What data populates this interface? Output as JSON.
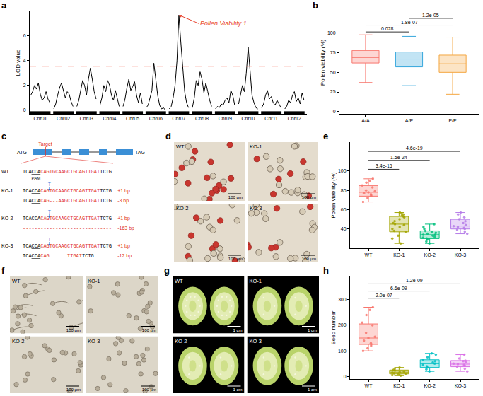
{
  "chart_data": [
    {
      "panel": "a",
      "type": "line",
      "color": "#000000",
      "categories": [
        null,
        null,
        null,
        null,
        null,
        "Chr01",
        null,
        null,
        null,
        null,
        null,
        null,
        null,
        null,
        null,
        null,
        null,
        "Chr02",
        null,
        null,
        null,
        null,
        null,
        null,
        null,
        null,
        null,
        null,
        null,
        "Chr03",
        null,
        null,
        null,
        null,
        null,
        null,
        null,
        null,
        null,
        null,
        null,
        "Chr04",
        null,
        null,
        null,
        null,
        null,
        null,
        null,
        null,
        null,
        null,
        null,
        "Chr05",
        null,
        null,
        null,
        null,
        null,
        null,
        null,
        null,
        null,
        null,
        null,
        "Chr06",
        null,
        null,
        null,
        null,
        null,
        null,
        null,
        null,
        null,
        null,
        null,
        "Chr07",
        null,
        null,
        null,
        null,
        null,
        null,
        null,
        null,
        null,
        null,
        null,
        "Chr08",
        null,
        null,
        null,
        null,
        null,
        null,
        null,
        null,
        null,
        null,
        null,
        "Chr09",
        null,
        null,
        null,
        null,
        null,
        null,
        null,
        null,
        null,
        null,
        null,
        "Chr10",
        null,
        null,
        null,
        null,
        null,
        null,
        null,
        null,
        null,
        null,
        null,
        "Chr11",
        null,
        null,
        null,
        null,
        null,
        null,
        null,
        null,
        null,
        null,
        null,
        "Chr12",
        null,
        null,
        null,
        null,
        null,
        null
      ],
      "values": [
        1.2,
        1.5,
        2.0,
        1.7,
        2.2,
        1.3,
        0.8,
        1.0,
        1.5,
        0.9,
        0.6,
        null,
        0.1,
        0.5,
        1.2,
        1.8,
        2.2,
        1.6,
        1.0,
        1.5,
        1.3,
        0.7,
        0.3,
        null,
        0.3,
        0.8,
        1.6,
        2.4,
        2.0,
        1.2,
        2.5,
        3.4,
        2.5,
        1.5,
        0.9,
        null,
        0.4,
        1.0,
        2.0,
        1.5,
        2.4,
        2.0,
        1.2,
        0.8,
        1.6,
        1.0,
        0.3,
        null,
        0.3,
        0.9,
        1.8,
        2.5,
        1.6,
        1.9,
        2.3,
        1.2,
        0.6,
        1.4,
        0.5,
        null,
        0.2,
        0.4,
        1.0,
        1.6,
        3.8,
        2.5,
        1.2,
        0.4,
        0.1,
        0.2,
        0.0,
        null,
        0.1,
        0.3,
        1.0,
        2.0,
        4.0,
        7.7,
        5.5,
        3.5,
        1.5,
        0.6,
        0.2,
        null,
        0.2,
        1.0,
        2.4,
        2.0,
        3.1,
        2.5,
        1.4,
        2.2,
        1.5,
        0.8,
        0.3,
        null,
        0.1,
        0.3,
        0.2,
        0.5,
        0.4,
        0.8,
        1.0,
        0.6,
        1.6,
        1.2,
        0.4,
        null,
        0.5,
        1.2,
        2.0,
        1.5,
        3.0,
        5.1,
        3.0,
        1.2,
        0.6,
        0.2,
        0.1,
        null,
        0.2,
        0.5,
        1.2,
        1.6,
        0.9,
        1.1,
        0.6,
        0.4,
        0.8,
        0.5,
        0.2,
        null,
        0.1,
        0.3,
        0.8,
        0.6,
        1.2,
        1.5,
        0.7,
        1.0,
        0.5,
        1.4,
        0.8,
        null
      ],
      "ylabel": "LOD value",
      "ylim": [
        -0.3,
        8
      ],
      "yticks": [
        0,
        2,
        4,
        6
      ],
      "grid": false,
      "threshold": {
        "value": 3.55,
        "color": "#F4826F",
        "line_style": "dashed"
      },
      "annotation": {
        "text": "Pollen Viability 1",
        "color": "#E8412C"
      }
    },
    {
      "panel": "b",
      "type": "box",
      "categories": [
        "A/A",
        "A/E",
        "E/E"
      ],
      "colors": [
        "#F8766D",
        "#35A7DC",
        "#F4A640"
      ],
      "boxes": [
        {
          "q1": 62,
          "median": 69,
          "q3": 78,
          "low": 37,
          "high": 98
        },
        {
          "q1": 57,
          "median": 67,
          "q3": 76,
          "low": 33,
          "high": 96
        },
        {
          "q1": 50,
          "median": 61,
          "q3": 72,
          "low": 22,
          "high": 95
        }
      ],
      "ylabel": "Pollen viability (%)",
      "ylim": [
        -3,
        128
      ],
      "yticks": [
        0,
        25,
        50,
        75,
        100
      ],
      "grid": false,
      "comparisons": [
        {
          "groups": [
            "A/A",
            "A/E"
          ],
          "p": "0.028"
        },
        {
          "groups": [
            "A/A",
            "E/E"
          ],
          "p": "1.8e-07"
        },
        {
          "groups": [
            "A/E",
            "E/E"
          ],
          "p": "1.2e-05"
        }
      ]
    },
    {
      "panel": "e",
      "type": "box",
      "categories": [
        "WT",
        "KO-1",
        "KO-2",
        "KO-3"
      ],
      "colors": [
        "#F8766D",
        "#A3A500",
        "#00BF7D",
        "#B57BE8"
      ],
      "boxes": [
        {
          "q1": 74,
          "median": 78,
          "q3": 85,
          "low": 68,
          "high": 92,
          "points": [
            68,
            72,
            74,
            75,
            76,
            77,
            78,
            79,
            80,
            83,
            85,
            88,
            90,
            92
          ]
        },
        {
          "q1": 37,
          "median": 45,
          "q3": 53,
          "low": 25,
          "high": 57,
          "points": [
            25,
            30,
            33,
            37,
            38,
            40,
            42,
            44,
            45,
            46,
            48,
            50,
            52,
            53,
            54,
            55,
            56,
            57
          ]
        },
        {
          "q1": 30,
          "median": 34,
          "q3": 38,
          "low": 25,
          "high": 45,
          "points": [
            25,
            27,
            29,
            30,
            31,
            32,
            33,
            34,
            34,
            35,
            36,
            37,
            38,
            40,
            42,
            45
          ]
        },
        {
          "q1": 40,
          "median": 43,
          "q3": 50,
          "low": 35,
          "high": 57,
          "points": [
            35,
            37,
            39,
            40,
            41,
            42,
            43,
            44,
            46,
            48,
            50,
            52,
            55,
            57
          ]
        }
      ],
      "ylabel": "Pollen viability (%)",
      "ylim": [
        20,
        130
      ],
      "yticks": [
        40,
        60,
        80,
        100
      ],
      "grid": false,
      "comparisons": [
        {
          "groups": [
            "WT",
            "KO-1"
          ],
          "p": "3.4e-15"
        },
        {
          "groups": [
            "WT",
            "KO-2"
          ],
          "p": "1.5e-24"
        },
        {
          "groups": [
            "WT",
            "KO-3"
          ],
          "p": "4.6e-19"
        }
      ]
    },
    {
      "panel": "h",
      "type": "box",
      "categories": [
        "WT",
        "KO-1",
        "KO-2",
        "KO-3"
      ],
      "colors": [
        "#F8766D",
        "#A3A500",
        "#00BFC4",
        "#D970E6"
      ],
      "boxes": [
        {
          "q1": 125,
          "median": 150,
          "q3": 205,
          "low": 100,
          "high": 270,
          "points": [
            100,
            110,
            120,
            125,
            130,
            140,
            150,
            155,
            170,
            200,
            210,
            240,
            260,
            270
          ]
        },
        {
          "q1": 10,
          "median": 17,
          "q3": 25,
          "low": 3,
          "high": 35,
          "points": [
            3,
            5,
            8,
            10,
            12,
            15,
            17,
            20,
            23,
            25,
            30,
            35
          ]
        },
        {
          "q1": 35,
          "median": 50,
          "q3": 65,
          "low": 20,
          "high": 90,
          "points": [
            20,
            28,
            35,
            40,
            45,
            50,
            55,
            60,
            65,
            75,
            85,
            90
          ]
        },
        {
          "q1": 38,
          "median": 48,
          "q3": 62,
          "low": 20,
          "high": 85,
          "points": [
            20,
            30,
            38,
            42,
            45,
            48,
            50,
            55,
            60,
            62,
            70,
            85
          ]
        }
      ],
      "ylabel": "Seed number",
      "ylim": [
        -10,
        390
      ],
      "yticks": [
        0,
        100,
        200,
        300
      ],
      "grid": false,
      "comparisons": [
        {
          "groups": [
            "WT",
            "KO-1"
          ],
          "p": "2.0e-07"
        },
        {
          "groups": [
            "WT",
            "KO-2"
          ],
          "p": "6.6e-09"
        },
        {
          "groups": [
            "WT",
            "KO-3"
          ],
          "p": "1.2e-09"
        }
      ]
    }
  ],
  "diagram": {
    "panel": "c",
    "gene": {
      "start": "ATG",
      "end": "TAG",
      "target": "Target"
    },
    "pam": "PAM",
    "rows": [
      {
        "name": "WT",
        "segments": [
          {
            "text": "TCA"
          },
          {
            "text": "CCA",
            "style": "pam"
          },
          {
            "text": "CAGTGCAAGCTGCAGTTGAT",
            "style": "target"
          },
          {
            "text": "TCTG"
          }
        ]
      },
      {
        "name": "KO-1",
        "segments": [
          {
            "text": "TCA"
          },
          {
            "text": "CCA",
            "style": "pam"
          },
          {
            "text": "CAG",
            "style": "target"
          },
          {
            "text": "T",
            "style": "insert"
          },
          {
            "text": "TGCAAGCTGCAGTTGAT",
            "style": "target"
          },
          {
            "text": "TCTG"
          }
        ],
        "change": "+1 bp"
      },
      {
        "segments": [
          {
            "text": "TCA"
          },
          {
            "text": "CCA",
            "style": "pam"
          },
          {
            "text": "CAG",
            "style": "target"
          },
          {
            "text": "---",
            "style": "target"
          },
          {
            "text": "AAGCTGCAGTTGAT",
            "style": "target"
          },
          {
            "text": "TCTG"
          }
        ],
        "change": "-3 bp"
      },
      {
        "name": "KO-2",
        "segments": [
          {
            "text": "TCA"
          },
          {
            "text": "CCA",
            "style": "pam"
          },
          {
            "text": "CAG",
            "style": "target"
          },
          {
            "text": "T",
            "style": "insert"
          },
          {
            "text": "TGCAAGCTGCAGTTGAT",
            "style": "target"
          },
          {
            "text": "TCTG"
          }
        ],
        "change": "+1 bp"
      },
      {
        "segments": [
          {
            "text": "------------------------------",
            "style": "target"
          }
        ],
        "change": "-163 bp"
      },
      {
        "name": "KO-3",
        "segments": [
          {
            "text": "TCA"
          },
          {
            "text": "CCA",
            "style": "pam"
          },
          {
            "text": "CAG",
            "style": "target"
          },
          {
            "text": "T",
            "style": "insert"
          },
          {
            "text": "TGCAAGCTGCAGTTGAT",
            "style": "target"
          },
          {
            "text": "TCTG"
          }
        ],
        "change": "+1 bp"
      },
      {
        "segments": [
          {
            "text": "TCA"
          },
          {
            "text": "CCA",
            "style": "pam"
          },
          {
            "text": "CAG",
            "style": "target"
          },
          {
            "style": "gap"
          },
          {
            "text": "TTGAT",
            "style": "target"
          },
          {
            "text": "TCTG"
          }
        ],
        "change": "-12 bp"
      }
    ]
  },
  "images": [
    {
      "panel": "d",
      "type": "stain",
      "images": [
        {
          "name": "WT",
          "scale": "100 μm"
        },
        {
          "name": "KO-1",
          "scale": "100 μm"
        },
        {
          "name": "KO-2",
          "scale": "100 μm"
        },
        {
          "name": "KO-3",
          "scale": "100 μm"
        }
      ]
    },
    {
      "panel": "f",
      "type": "germination",
      "images": [
        {
          "name": "WT",
          "scale": "100 μm"
        },
        {
          "name": "KO-1",
          "scale": "100 μm"
        },
        {
          "name": "KO-2",
          "scale": "100 μm"
        },
        {
          "name": "KO-3",
          "scale": "100 μm"
        }
      ]
    },
    {
      "panel": "g",
      "type": "fruit",
      "images": [
        {
          "name": "WT",
          "scale": "1 cm"
        },
        {
          "name": "KO-1",
          "scale": "1 cm"
        },
        {
          "name": "KO-2",
          "scale": "1 cm"
        },
        {
          "name": "KO-3",
          "scale": "1 cm"
        }
      ]
    }
  ]
}
